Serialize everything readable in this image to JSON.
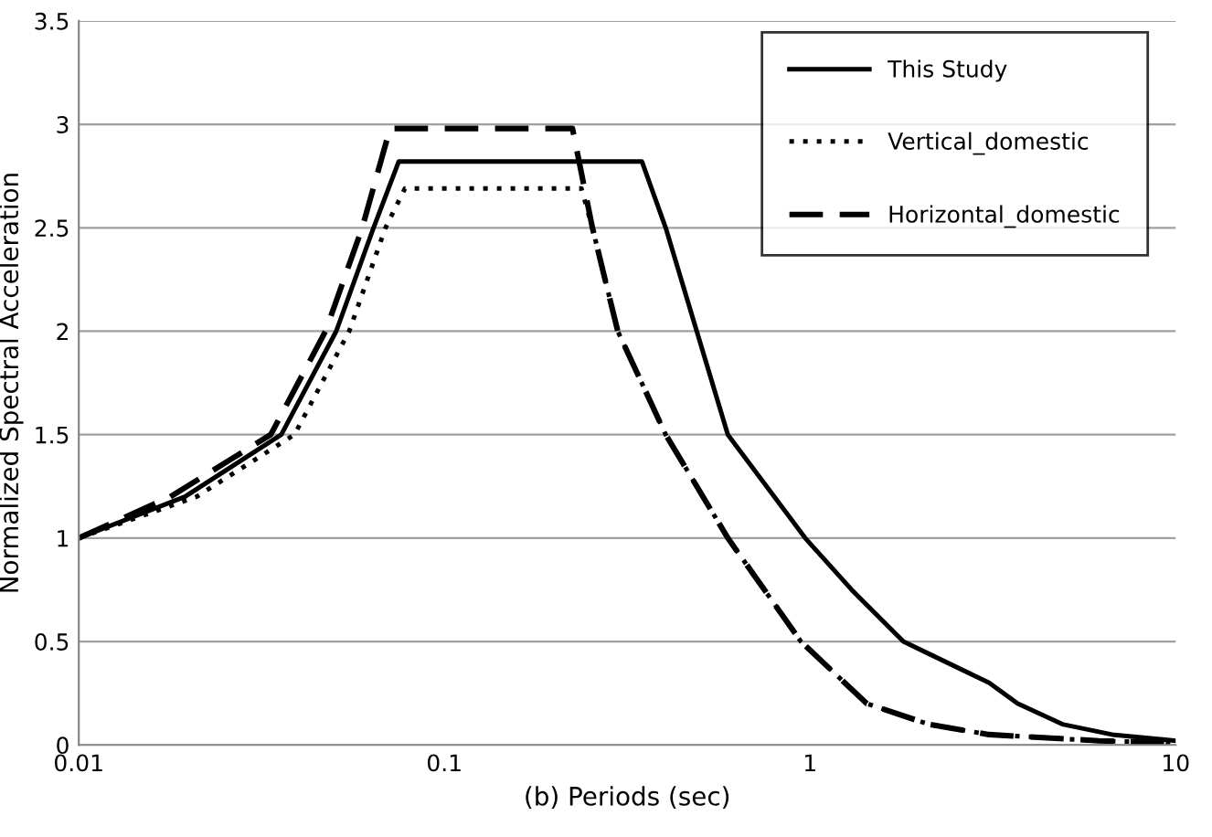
{
  "chart_data": {
    "type": "line",
    "xlabel": "(b) Periods (sec)",
    "ylabel": "Normalized Spectral Acceleration",
    "log": "x",
    "xlim": [
      0.01,
      10
    ],
    "xticks": [
      0.01,
      0.1,
      1,
      10
    ],
    "ylim": [
      0,
      3.5
    ],
    "yticks": [
      0,
      0.5,
      1,
      1.5,
      2,
      2.5,
      3,
      3.5
    ],
    "grid": "y",
    "legend": "top right",
    "series": [
      {
        "name": "This Study",
        "color": "#000000",
        "line_style": "solid",
        "x": [
          0.01,
          0.0195,
          0.0358,
          0.0506,
          0.064,
          0.075,
          0.347,
          0.403,
          0.49,
          0.596,
          0.97,
          1.3,
          1.8,
          3.09,
          3.7,
          4.9,
          6.7,
          10
        ],
        "values": [
          1,
          1.2,
          1.5,
          2,
          2.5,
          2.82,
          2.82,
          2.5,
          2,
          1.5,
          1,
          0.75,
          0.5,
          0.3,
          0.2,
          0.1,
          0.05,
          0.02
        ]
      },
      {
        "name": "Vertical_domestic",
        "color": "#000000",
        "line_style": "dotted",
        "x": [
          0.01,
          0.021,
          0.0389,
          0.0549,
          0.069,
          0.078,
          0.237,
          0.254,
          0.298,
          0.403,
          0.596,
          0.944,
          1.43,
          2.11,
          3.09,
          6.17,
          10
        ],
        "values": [
          1,
          1.2,
          1.5,
          2,
          2.5,
          2.69,
          2.69,
          2.5,
          2,
          1.5,
          1,
          0.5,
          0.2,
          0.1,
          0.05,
          0.02,
          0.01
        ]
      },
      {
        "name": "Horizontal_domestic",
        "color": "#000000",
        "line_style": "dashed",
        "x": [
          0.01,
          0.0178,
          0.0335,
          0.0473,
          0.0596,
          0.071,
          0.224,
          0.254,
          0.298,
          0.403,
          0.596,
          0.944,
          1.43,
          2.11,
          3.09,
          6.17,
          10
        ],
        "values": [
          1,
          1.2,
          1.5,
          2,
          2.5,
          2.98,
          2.98,
          2.5,
          2,
          1.5,
          1,
          0.5,
          0.2,
          0.1,
          0.05,
          0.02,
          0.01
        ]
      }
    ]
  }
}
